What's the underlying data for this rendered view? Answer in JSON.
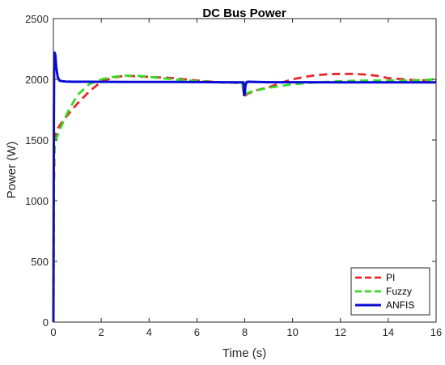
{
  "chart_data": {
    "type": "line",
    "title": "DC Bus Power",
    "xlabel": "Time (s)",
    "ylabel": "Power (W)",
    "xlim": [
      0,
      16
    ],
    "ylim": [
      0,
      2500
    ],
    "xticks": [
      0,
      2,
      4,
      6,
      8,
      10,
      12,
      14,
      16
    ],
    "yticks": [
      0,
      500,
      1000,
      1500,
      2000,
      2500
    ],
    "grid": false,
    "legend_position": "bottom-right",
    "series": [
      {
        "name": "PI",
        "color": "#e8272b",
        "dash": "dashed",
        "x": [
          0,
          0.02,
          0.05,
          0.1,
          0.2,
          0.4,
          0.7,
          1.0,
          1.5,
          2.0,
          2.5,
          3.0,
          3.5,
          4.0,
          5.0,
          6.0,
          7.0,
          7.9,
          7.95,
          8.0,
          8.1,
          8.5,
          9.0,
          9.5,
          10.0,
          10.5,
          11.0,
          11.5,
          12.0,
          12.5,
          13.0,
          13.5,
          14.0,
          15.0,
          16.0
        ],
        "y": [
          0,
          1100,
          1450,
          1550,
          1600,
          1660,
          1730,
          1800,
          1900,
          1980,
          2015,
          2030,
          2025,
          2020,
          2010,
          1990,
          1975,
          1970,
          1900,
          1860,
          1880,
          1910,
          1935,
          1970,
          2000,
          2020,
          2035,
          2042,
          2045,
          2045,
          2040,
          2030,
          2010,
          1995,
          1990
        ]
      },
      {
        "name": "Fuzzy",
        "color": "#33dd22",
        "dash": "dashed",
        "x": [
          0,
          0.02,
          0.05,
          0.1,
          0.3,
          0.6,
          1.0,
          1.5,
          2.0,
          2.5,
          3.0,
          3.5,
          4.0,
          5.0,
          6.0,
          7.0,
          7.9,
          7.95,
          8.0,
          8.3,
          9.0,
          10.0,
          11.0,
          12.0,
          13.0,
          14.0,
          15.0,
          16.0
        ],
        "y": [
          0,
          1300,
          1450,
          1500,
          1600,
          1730,
          1870,
          1960,
          2000,
          2020,
          2030,
          2030,
          2020,
          2000,
          1985,
          1975,
          1970,
          1900,
          1880,
          1900,
          1930,
          1960,
          1975,
          1985,
          1990,
          1990,
          1990,
          2000
        ]
      },
      {
        "name": "ANFIS",
        "color": "#0a0ad6",
        "dash": "solid",
        "x": [
          0,
          0.01,
          0.02,
          0.03,
          0.05,
          0.08,
          0.12,
          0.18,
          0.25,
          0.35,
          0.5,
          0.8,
          1.5,
          3.0,
          5.0,
          7.0,
          7.95,
          7.97,
          8.0,
          8.03,
          8.08,
          8.15,
          9.0,
          10.0,
          12.0,
          14.0,
          16.0
        ],
        "y": [
          0,
          900,
          1700,
          2100,
          2220,
          2200,
          2100,
          2020,
          1990,
          1985,
          1982,
          1980,
          1980,
          1978,
          1978,
          1976,
          1975,
          1870,
          1880,
          1950,
          1978,
          1980,
          1976,
          1976,
          1975,
          1975,
          1975
        ]
      }
    ]
  }
}
